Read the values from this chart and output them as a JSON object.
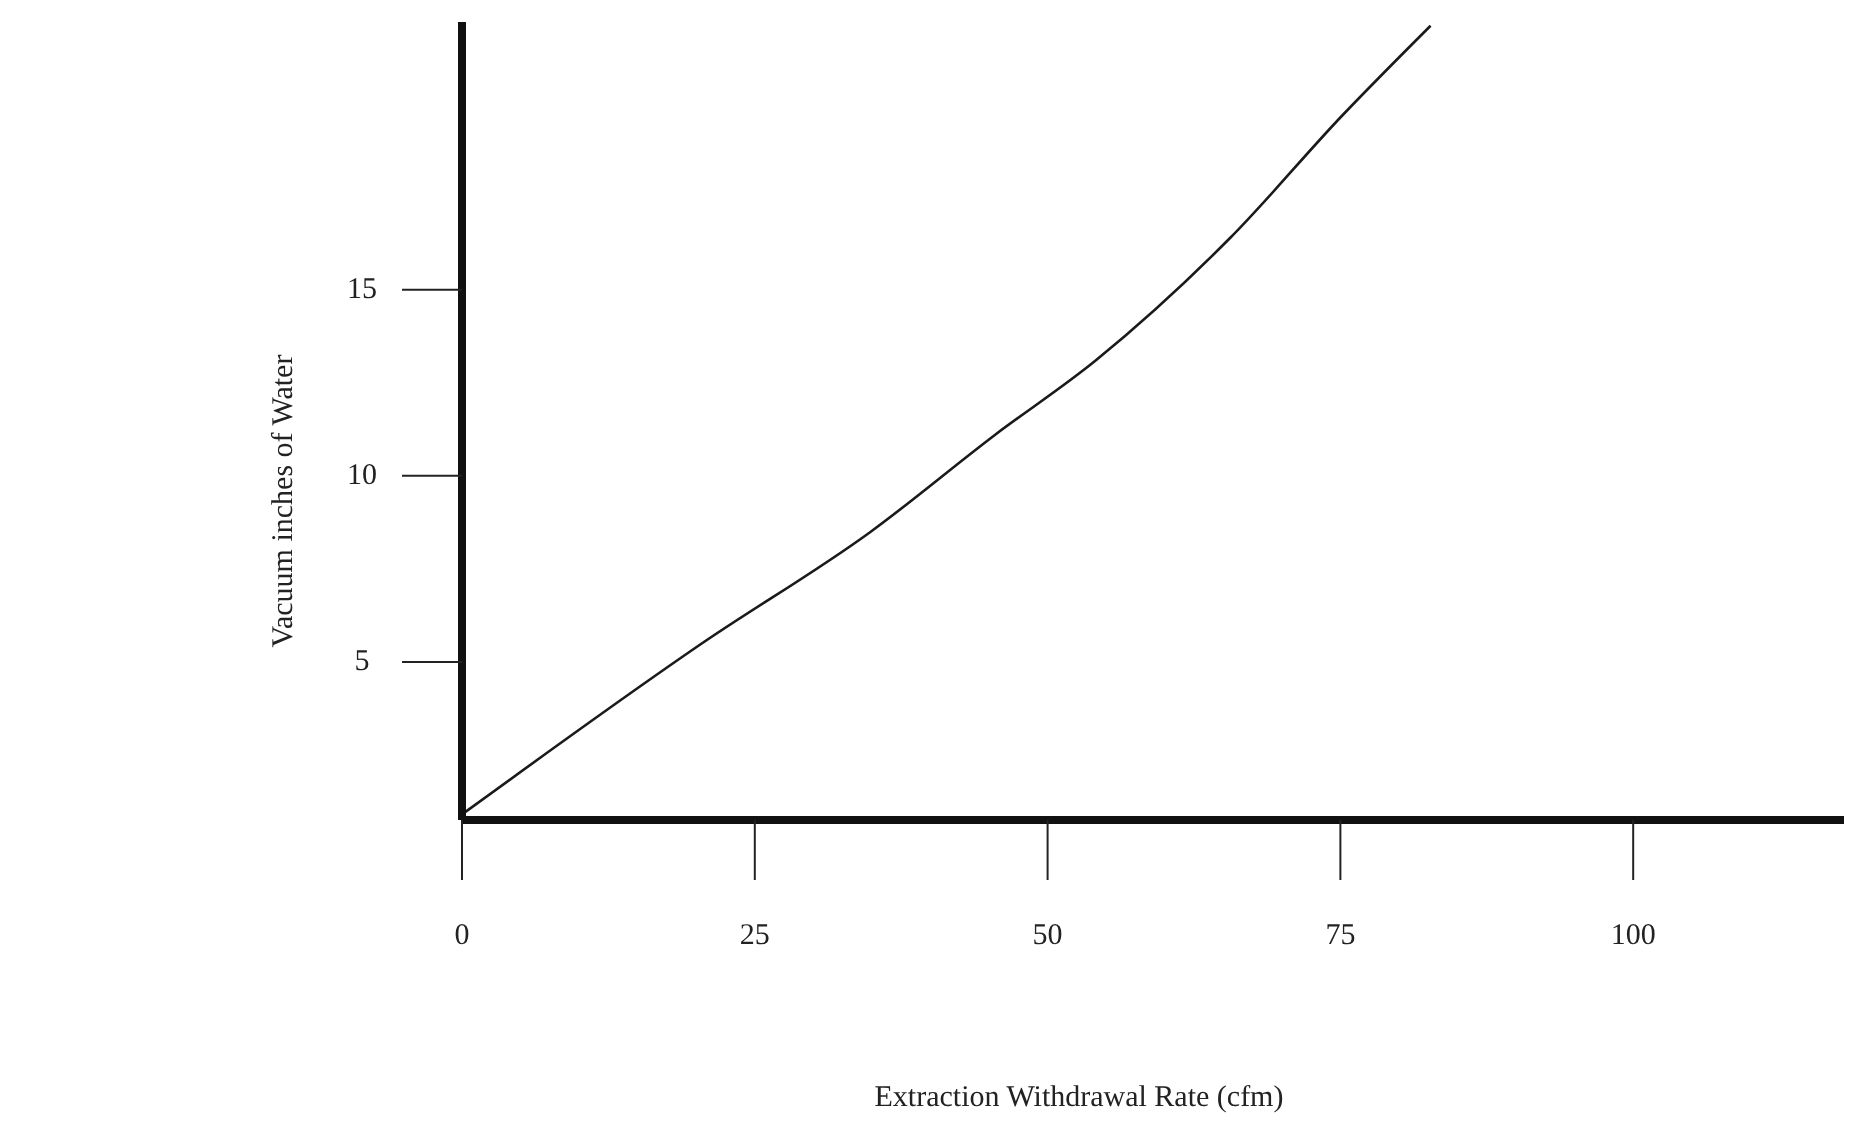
{
  "chart_data": {
    "type": "line",
    "xlabel": "Extraction Withdrawal Rate (cfm)",
    "ylabel": "Vacuum inches of Water",
    "xlim": [
      0,
      118
    ],
    "ylim": [
      0.75,
      22.2
    ],
    "xticks": [
      0,
      25,
      50,
      75,
      100
    ],
    "yticks": [
      5,
      10,
      15
    ],
    "grid": false,
    "marker": "none",
    "line_style": "solid",
    "series": [
      {
        "color": "#1a1a1a",
        "x": [
          0,
          20.5,
          34.9,
          45.5,
          54.1,
          65.6,
          75.2,
          82.7
        ],
        "values": [
          0.9,
          5.5,
          8.5,
          11.1,
          13.1,
          16.4,
          19.7,
          22.1
        ]
      }
    ]
  }
}
